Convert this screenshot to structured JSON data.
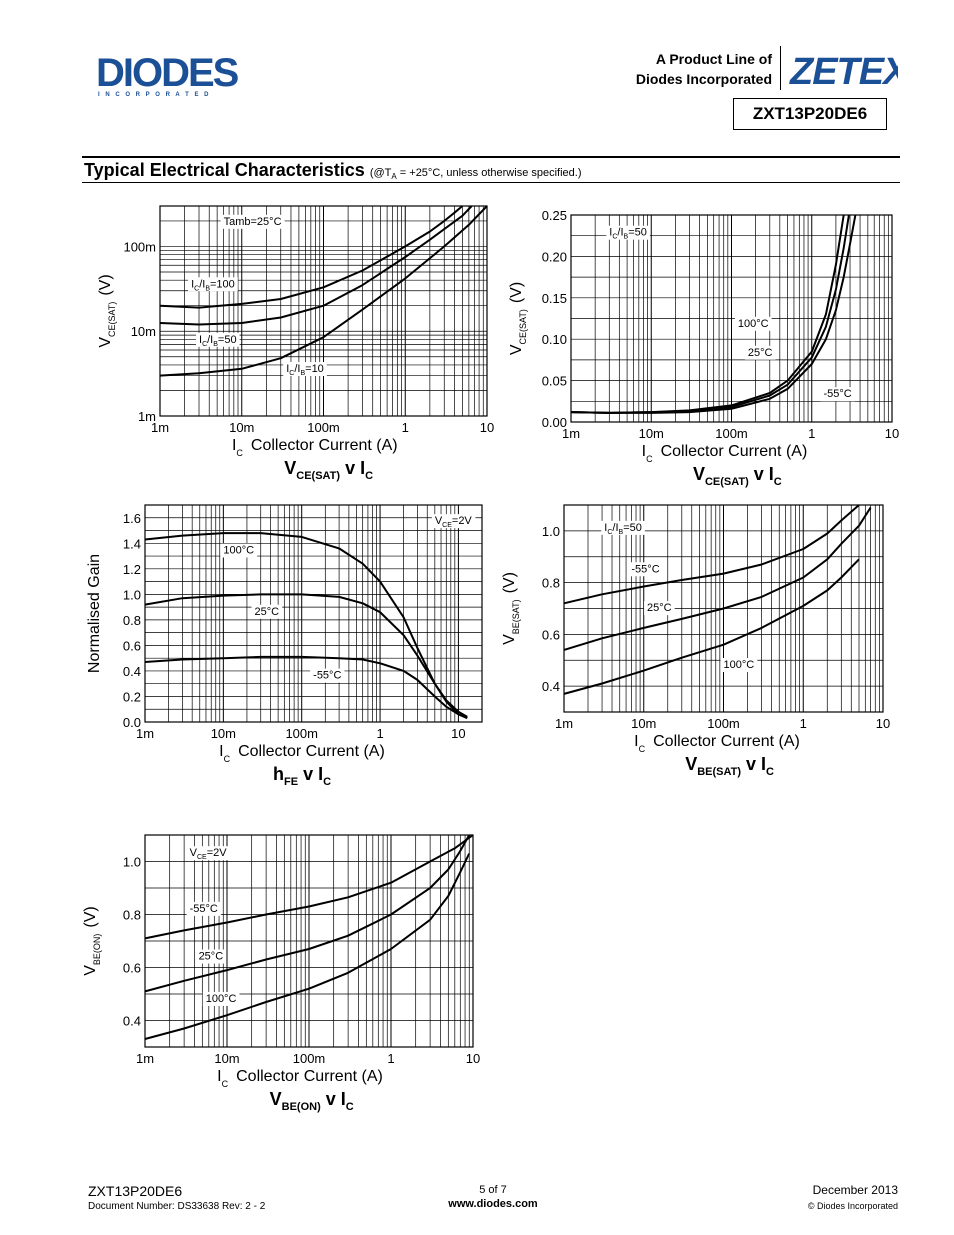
{
  "header": {
    "company": "DIODES",
    "company_sub": "I N C O R P O R A T E D",
    "product_line_1": "A Product Line of",
    "product_line_2": "Diodes Incorporated",
    "brand": "ZETEX",
    "part_number": "ZXT13P20DE6"
  },
  "section": {
    "title": "Typical Electrical Characteristics",
    "note": "(@T",
    "note_sub": "A",
    "note_rest": " = +25°C, unless otherwise specified.)"
  },
  "footer": {
    "part": "ZXT13P20DE6",
    "doc_number": "Document Number: DS33638 Rev: 2 - 2",
    "page": "5 of 7",
    "url": "www.diodes.com",
    "date": "December 2013",
    "copyright": "© Diodes Incorporated"
  },
  "chart_data": [
    {
      "id": "vcesat-log",
      "type": "line",
      "title": "VCE(SAT) v IC",
      "xscale": "log",
      "xlim": [
        0.001,
        10
      ],
      "yscale": "log",
      "ylim": [
        0.001,
        0.3
      ],
      "xticks": [
        0.001,
        0.01,
        0.1,
        1,
        10
      ],
      "xticklabels": [
        "1m",
        "10m",
        "100m",
        "1",
        "10"
      ],
      "yticks": [
        0.001,
        0.01,
        0.1
      ],
      "yticklabels": [
        "1m",
        "10m",
        "100m"
      ],
      "xlabel": "Collector Current (A)",
      "xlabel_sym": "I",
      "xlabel_sub": "C",
      "ylabel": "(V)",
      "ylabel_sym": "V",
      "ylabel_sub": "CE(SAT)",
      "grid": true,
      "annotations": [
        {
          "text": "Tamb=25°C",
          "x": 0.006,
          "y": 0.18
        },
        {
          "text": "IC/IB=100",
          "x": 0.0024,
          "y": 0.033
        },
        {
          "text": "IC/IB=50",
          "x": 0.003,
          "y": 0.0073
        },
        {
          "text": "IC/IB=10",
          "x": 0.035,
          "y": 0.0033
        }
      ],
      "series": [
        {
          "name": "IC/IB=100",
          "x": [
            0.001,
            0.003,
            0.01,
            0.03,
            0.1,
            0.3,
            1,
            2,
            3,
            4,
            5
          ],
          "y": [
            0.02,
            0.019,
            0.021,
            0.024,
            0.033,
            0.052,
            0.1,
            0.15,
            0.2,
            0.25,
            0.3
          ]
        },
        {
          "name": "IC/IB=50",
          "x": [
            0.001,
            0.003,
            0.01,
            0.03,
            0.1,
            0.3,
            1,
            2,
            3,
            5,
            6.5
          ],
          "y": [
            0.0125,
            0.012,
            0.0125,
            0.0145,
            0.02,
            0.035,
            0.075,
            0.12,
            0.16,
            0.23,
            0.3
          ]
        },
        {
          "name": "IC/IB=10",
          "x": [
            0.001,
            0.003,
            0.01,
            0.03,
            0.1,
            0.3,
            1,
            3,
            6,
            10
          ],
          "y": [
            0.003,
            0.0032,
            0.0036,
            0.0048,
            0.0085,
            0.018,
            0.042,
            0.1,
            0.18,
            0.3
          ]
        }
      ]
    },
    {
      "id": "vcesat-lin",
      "type": "line",
      "title": "VCE(SAT) v IC",
      "xscale": "log",
      "xlim": [
        0.001,
        10
      ],
      "yscale": "linear",
      "ylim": [
        0,
        0.25
      ],
      "xticks": [
        0.001,
        0.01,
        0.1,
        1,
        10
      ],
      "xticklabels": [
        "1m",
        "10m",
        "100m",
        "1",
        "10"
      ],
      "yticks": [
        0,
        0.05,
        0.1,
        0.15,
        0.2,
        0.25
      ],
      "yticklabels": [
        "0.00",
        "0.05",
        "0.10",
        "0.15",
        "0.20",
        "0.25"
      ],
      "xlabel": "Collector Current (A)",
      "xlabel_sym": "I",
      "xlabel_sub": "C",
      "ylabel": "(V)",
      "ylabel_sym": "V",
      "ylabel_sub": "CE(SAT)",
      "grid": true,
      "annotations": [
        {
          "text": "IC/IB=50",
          "x": 0.003,
          "y": 0.225
        },
        {
          "text": "100°C",
          "x": 0.12,
          "y": 0.115
        },
        {
          "text": "25°C",
          "x": 0.16,
          "y": 0.08
        },
        {
          "text": "-55°C",
          "x": 1.4,
          "y": 0.03
        }
      ],
      "series": [
        {
          "name": "100°C",
          "x": [
            0.001,
            0.003,
            0.01,
            0.03,
            0.1,
            0.3,
            0.5,
            1,
            1.5,
            2,
            2.5
          ],
          "y": [
            0.012,
            0.011,
            0.012,
            0.014,
            0.02,
            0.035,
            0.05,
            0.085,
            0.13,
            0.19,
            0.25
          ]
        },
        {
          "name": "25°C",
          "x": [
            0.001,
            0.003,
            0.01,
            0.03,
            0.1,
            0.3,
            0.5,
            1,
            1.5,
            2,
            2.5,
            2.9
          ],
          "y": [
            0.012,
            0.011,
            0.012,
            0.013,
            0.018,
            0.032,
            0.045,
            0.078,
            0.115,
            0.16,
            0.21,
            0.25
          ]
        },
        {
          "name": "-55°C",
          "x": [
            0.001,
            0.003,
            0.01,
            0.03,
            0.1,
            0.3,
            0.5,
            1,
            1.5,
            2,
            2.5,
            3,
            3.5
          ],
          "y": [
            0.012,
            0.011,
            0.011,
            0.012,
            0.016,
            0.028,
            0.04,
            0.07,
            0.1,
            0.135,
            0.175,
            0.215,
            0.25
          ]
        }
      ]
    },
    {
      "id": "hfe",
      "type": "line",
      "title": "hFE v IC",
      "xscale": "log",
      "xlim": [
        0.001,
        20
      ],
      "yscale": "linear",
      "ylim": [
        0,
        1.7
      ],
      "xticks": [
        0.001,
        0.01,
        0.1,
        1,
        10
      ],
      "xticklabels": [
        "1m",
        "10m",
        "100m",
        "1",
        "10"
      ],
      "yticks": [
        0,
        0.2,
        0.4,
        0.6,
        0.8,
        1.0,
        1.2,
        1.4,
        1.6
      ],
      "yticklabels": [
        "0.0",
        "0.2",
        "0.4",
        "0.6",
        "0.8",
        "1.0",
        "1.2",
        "1.4",
        "1.6"
      ],
      "xlabel": "Collector Current (A)",
      "xlabel_sym": "I",
      "xlabel_sub": "C",
      "ylabel": "Normalised Gain",
      "grid": true,
      "annotations": [
        {
          "text": "VCE=2V",
          "x": 5,
          "y": 1.55
        },
        {
          "text": "100°C",
          "x": 0.01,
          "y": 1.32
        },
        {
          "text": "25°C",
          "x": 0.025,
          "y": 0.84
        },
        {
          "text": "-55°C",
          "x": 0.14,
          "y": 0.34
        }
      ],
      "series": [
        {
          "name": "100°C",
          "x": [
            0.001,
            0.003,
            0.01,
            0.03,
            0.1,
            0.3,
            0.6,
            1,
            2,
            3,
            5,
            7,
            10
          ],
          "y": [
            1.43,
            1.46,
            1.48,
            1.48,
            1.45,
            1.36,
            1.24,
            1.1,
            0.82,
            0.58,
            0.3,
            0.16,
            0.06
          ]
        },
        {
          "name": "25°C",
          "x": [
            0.001,
            0.003,
            0.01,
            0.03,
            0.1,
            0.3,
            0.6,
            1,
            2,
            3,
            5,
            7,
            10,
            13
          ],
          "y": [
            0.92,
            0.97,
            0.99,
            1.0,
            1.0,
            0.98,
            0.93,
            0.86,
            0.68,
            0.52,
            0.3,
            0.17,
            0.08,
            0.04
          ]
        },
        {
          "name": "-55°C",
          "x": [
            0.001,
            0.003,
            0.01,
            0.03,
            0.1,
            0.3,
            0.6,
            1,
            2,
            3,
            5,
            7,
            10,
            13
          ],
          "y": [
            0.47,
            0.49,
            0.5,
            0.51,
            0.51,
            0.5,
            0.49,
            0.46,
            0.4,
            0.33,
            0.2,
            0.12,
            0.06,
            0.03
          ]
        }
      ]
    },
    {
      "id": "vbesat",
      "type": "line",
      "title": "VBE(SAT) v IC",
      "xscale": "log",
      "xlim": [
        0.001,
        10
      ],
      "yscale": "linear",
      "ylim": [
        0.3,
        1.1
      ],
      "xticks": [
        0.001,
        0.01,
        0.1,
        1,
        10
      ],
      "xticklabels": [
        "1m",
        "10m",
        "100m",
        "1",
        "10"
      ],
      "yticks": [
        0.4,
        0.6,
        0.8,
        1.0
      ],
      "yticklabels": [
        "0.4",
        "0.6",
        "0.8",
        "1.0"
      ],
      "xlabel": "Collector Current (A)",
      "xlabel_sym": "I",
      "xlabel_sub": "C",
      "ylabel": "(V)",
      "ylabel_sym": "V",
      "ylabel_sub": "BE(SAT)",
      "grid": true,
      "annotations": [
        {
          "text": "IC/IB=50",
          "x": 0.0032,
          "y": 1.0
        },
        {
          "text": "-55°C",
          "x": 0.007,
          "y": 0.84
        },
        {
          "text": "25°C",
          "x": 0.011,
          "y": 0.69
        },
        {
          "text": "100°C",
          "x": 0.1,
          "y": 0.47
        }
      ],
      "series": [
        {
          "name": "-55°C",
          "x": [
            0.001,
            0.003,
            0.01,
            0.03,
            0.1,
            0.3,
            1,
            2,
            3,
            5
          ],
          "y": [
            0.72,
            0.755,
            0.785,
            0.81,
            0.835,
            0.87,
            0.93,
            0.99,
            1.04,
            1.1
          ]
        },
        {
          "name": "25°C",
          "x": [
            0.001,
            0.003,
            0.01,
            0.03,
            0.1,
            0.3,
            1,
            2,
            3,
            5,
            7
          ],
          "y": [
            0.54,
            0.585,
            0.625,
            0.66,
            0.7,
            0.745,
            0.82,
            0.89,
            0.95,
            1.02,
            1.09
          ]
        },
        {
          "name": "100°C",
          "x": [
            0.001,
            0.003,
            0.01,
            0.03,
            0.1,
            0.3,
            1,
            2,
            3,
            5
          ],
          "y": [
            0.37,
            0.41,
            0.46,
            0.51,
            0.56,
            0.625,
            0.71,
            0.77,
            0.82,
            0.89
          ]
        }
      ]
    },
    {
      "id": "vbeon",
      "type": "line",
      "title": "VBE(ON) v IC",
      "xscale": "log",
      "xlim": [
        0.001,
        10
      ],
      "yscale": "linear",
      "ylim": [
        0.3,
        1.1
      ],
      "xticks": [
        0.001,
        0.01,
        0.1,
        1,
        10
      ],
      "xticklabels": [
        "1m",
        "10m",
        "100m",
        "1",
        "10"
      ],
      "yticks": [
        0.4,
        0.6,
        0.8,
        1.0
      ],
      "yticklabels": [
        "0.4",
        "0.6",
        "0.8",
        "1.0"
      ],
      "xlabel": "Collector Current (A)",
      "xlabel_sym": "I",
      "xlabel_sub": "C",
      "ylabel": "(V)",
      "ylabel_sym": "V",
      "ylabel_sub": "BE(ON)",
      "grid": true,
      "annotations": [
        {
          "text": "VCE=2V",
          "x": 0.0035,
          "y": 1.02
        },
        {
          "text": "-55°C",
          "x": 0.0035,
          "y": 0.81
        },
        {
          "text": "25°C",
          "x": 0.0045,
          "y": 0.63
        },
        {
          "text": "100°C",
          "x": 0.0055,
          "y": 0.47
        }
      ],
      "series": [
        {
          "name": "-55°C",
          "x": [
            0.001,
            0.003,
            0.01,
            0.03,
            0.1,
            0.3,
            1,
            3,
            6,
            10
          ],
          "y": [
            0.71,
            0.74,
            0.77,
            0.8,
            0.83,
            0.865,
            0.92,
            1.0,
            1.05,
            1.1
          ]
        },
        {
          "name": "25°C",
          "x": [
            0.001,
            0.003,
            0.01,
            0.03,
            0.1,
            0.3,
            1,
            3,
            5,
            7,
            9
          ],
          "y": [
            0.51,
            0.55,
            0.59,
            0.63,
            0.67,
            0.72,
            0.8,
            0.9,
            0.97,
            1.04,
            1.1
          ]
        },
        {
          "name": "100°C",
          "x": [
            0.001,
            0.003,
            0.01,
            0.03,
            0.1,
            0.3,
            1,
            3,
            5,
            7,
            9
          ],
          "y": [
            0.33,
            0.37,
            0.42,
            0.47,
            0.52,
            0.58,
            0.67,
            0.78,
            0.87,
            0.96,
            1.03
          ]
        }
      ]
    }
  ]
}
